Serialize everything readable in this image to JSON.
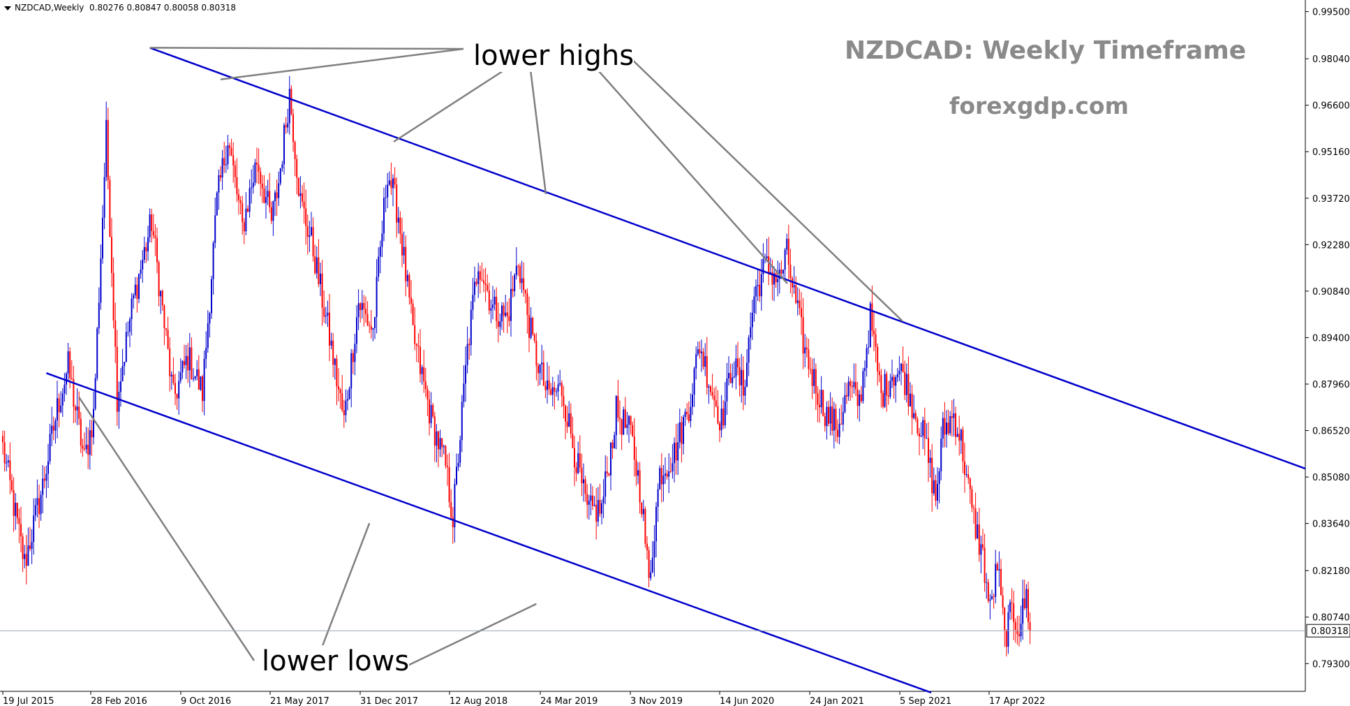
{
  "header": {
    "symbol": "NZDCAD,Weekly",
    "ohlc": "0.80276 0.80847 0.80058 0.80318"
  },
  "title": "NZDCAD: Weekly Timeframe",
  "website": "forexgdp.com",
  "annotations": {
    "highs": "lower highs",
    "lows": "lower lows"
  },
  "colors": {
    "bull": "#0000cc",
    "bear": "#ff0000",
    "trendline": "#0000cc",
    "pointer": "#7f7f7f",
    "title": "#8a8a8a"
  },
  "chart_data": {
    "type": "candlestick",
    "timeframe": "Weekly",
    "x_tick_labels": [
      "19 Jul 2015",
      "28 Feb 2016",
      "9 Oct 2016",
      "21 May 2017",
      "31 Dec 2017",
      "12 Aug 2018",
      "24 Mar 2019",
      "3 Nov 2019",
      "14 Jun 2020",
      "24 Jan 2021",
      "5 Sep 2021",
      "17 Apr 2022"
    ],
    "y_tick_labels": [
      "0.99500",
      "0.98040",
      "0.96600",
      "0.95160",
      "0.93720",
      "0.92280",
      "0.90840",
      "0.89400",
      "0.87960",
      "0.86520",
      "0.85080",
      "0.83640",
      "0.82180",
      "0.80740",
      "0.79300"
    ],
    "y_range": [
      0.7844,
      0.9986
    ],
    "last_price": "0.80318",
    "trendlines": [
      {
        "name": "upper",
        "points": [
          [
            "Oct 2016",
            0.9838
          ],
          [
            "Dec 2022",
            0.8534
          ]
        ]
      },
      {
        "name": "lower",
        "points": [
          [
            "Jul 2015",
            0.883
          ],
          [
            "Jul 2021",
            0.784
          ]
        ]
      }
    ],
    "swing_points": [
      {
        "label": "lower highs",
        "date": "Nov 2016",
        "price": 0.984
      },
      {
        "label": "lower highs",
        "date": "May 2017",
        "price": 0.974
      },
      {
        "label": "lower highs",
        "date": "Dec 2020",
        "price": 0.914
      },
      {
        "label": "lower highs",
        "date": "Jul 2021",
        "price": 0.9025
      },
      {
        "label": "lower lows",
        "date": "Jan 2016",
        "price": 0.8755
      },
      {
        "label": "lower lows",
        "date": "Sep 2018",
        "price": 0.8365
      },
      {
        "label": "lower lows",
        "date": "Mar 2020",
        "price": 0.8115
      }
    ],
    "waypoints": [
      {
        "x": 0,
        "price": 0.86
      },
      {
        "x": 12,
        "price": 0.824
      },
      {
        "x": 22,
        "price": 0.848
      },
      {
        "x": 30,
        "price": 0.872
      },
      {
        "x": 36,
        "price": 0.885
      },
      {
        "x": 45,
        "price": 0.856
      },
      {
        "x": 50,
        "price": 0.87
      },
      {
        "x": 57,
        "price": 0.957
      },
      {
        "x": 63,
        "price": 0.876
      },
      {
        "x": 72,
        "price": 0.906
      },
      {
        "x": 82,
        "price": 0.93
      },
      {
        "x": 94,
        "price": 0.875
      },
      {
        "x": 102,
        "price": 0.888
      },
      {
        "x": 110,
        "price": 0.877
      },
      {
        "x": 118,
        "price": 0.936
      },
      {
        "x": 124,
        "price": 0.956
      },
      {
        "x": 132,
        "price": 0.928
      },
      {
        "x": 140,
        "price": 0.949
      },
      {
        "x": 148,
        "price": 0.93
      },
      {
        "x": 152,
        "price": 0.942
      },
      {
        "x": 158,
        "price": 0.97
      },
      {
        "x": 164,
        "price": 0.936
      },
      {
        "x": 170,
        "price": 0.924
      },
      {
        "x": 180,
        "price": 0.894
      },
      {
        "x": 188,
        "price": 0.868
      },
      {
        "x": 196,
        "price": 0.905
      },
      {
        "x": 204,
        "price": 0.896
      },
      {
        "x": 212,
        "price": 0.946
      },
      {
        "x": 218,
        "price": 0.932
      },
      {
        "x": 226,
        "price": 0.895
      },
      {
        "x": 236,
        "price": 0.869
      },
      {
        "x": 244,
        "price": 0.854
      },
      {
        "x": 248,
        "price": 0.838
      },
      {
        "x": 256,
        "price": 0.89
      },
      {
        "x": 262,
        "price": 0.918
      },
      {
        "x": 270,
        "price": 0.903
      },
      {
        "x": 278,
        "price": 0.9
      },
      {
        "x": 284,
        "price": 0.918
      },
      {
        "x": 292,
        "price": 0.892
      },
      {
        "x": 300,
        "price": 0.876
      },
      {
        "x": 308,
        "price": 0.878
      },
      {
        "x": 316,
        "price": 0.856
      },
      {
        "x": 322,
        "price": 0.84
      },
      {
        "x": 330,
        "price": 0.841
      },
      {
        "x": 338,
        "price": 0.871
      },
      {
        "x": 346,
        "price": 0.864
      },
      {
        "x": 352,
        "price": 0.844
      },
      {
        "x": 356,
        "price": 0.818
      },
      {
        "x": 362,
        "price": 0.852
      },
      {
        "x": 370,
        "price": 0.858
      },
      {
        "x": 378,
        "price": 0.873
      },
      {
        "x": 384,
        "price": 0.892
      },
      {
        "x": 390,
        "price": 0.879
      },
      {
        "x": 396,
        "price": 0.868
      },
      {
        "x": 402,
        "price": 0.886
      },
      {
        "x": 408,
        "price": 0.878
      },
      {
        "x": 414,
        "price": 0.907
      },
      {
        "x": 420,
        "price": 0.916
      },
      {
        "x": 428,
        "price": 0.912
      },
      {
        "x": 432,
        "price": 0.92
      },
      {
        "x": 436,
        "price": 0.907
      },
      {
        "x": 442,
        "price": 0.89
      },
      {
        "x": 448,
        "price": 0.879
      },
      {
        "x": 454,
        "price": 0.87
      },
      {
        "x": 460,
        "price": 0.866
      },
      {
        "x": 466,
        "price": 0.878
      },
      {
        "x": 472,
        "price": 0.874
      },
      {
        "x": 478,
        "price": 0.9
      },
      {
        "x": 484,
        "price": 0.876
      },
      {
        "x": 490,
        "price": 0.883
      },
      {
        "x": 496,
        "price": 0.883
      },
      {
        "x": 502,
        "price": 0.872
      },
      {
        "x": 508,
        "price": 0.862
      },
      {
        "x": 514,
        "price": 0.844
      },
      {
        "x": 518,
        "price": 0.865
      },
      {
        "x": 524,
        "price": 0.87
      },
      {
        "x": 528,
        "price": 0.862
      },
      {
        "x": 534,
        "price": 0.84
      },
      {
        "x": 540,
        "price": 0.826
      },
      {
        "x": 544,
        "price": 0.809
      },
      {
        "x": 548,
        "price": 0.824
      },
      {
        "x": 552,
        "price": 0.801
      },
      {
        "x": 556,
        "price": 0.809
      },
      {
        "x": 560,
        "price": 0.8045
      },
      {
        "x": 564,
        "price": 0.814
      },
      {
        "x": 566,
        "price": 0.8032
      }
    ]
  }
}
